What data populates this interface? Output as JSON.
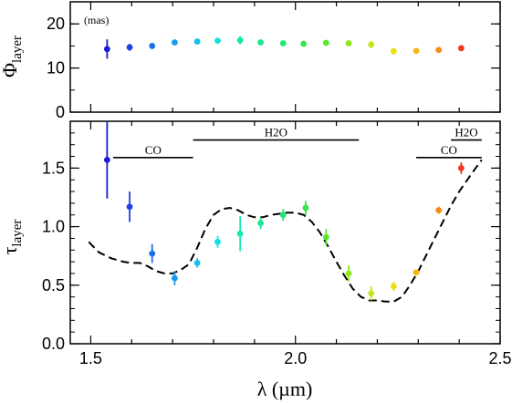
{
  "chart_data": [
    {
      "type": "scatter",
      "panel": "top",
      "ylabel_main": "Φ",
      "ylabel_sub": "layer",
      "annotation": "(mas)",
      "xlim": [
        1.45,
        2.5
      ],
      "ylim": [
        0,
        25
      ],
      "yticks": [
        0,
        10,
        20
      ],
      "grid": false,
      "points": [
        {
          "x": 1.54,
          "y": 14.3,
          "err": 2.2,
          "color": "#1a1ad6"
        },
        {
          "x": 1.595,
          "y": 14.7,
          "err": 0.8,
          "color": "#1f3fe0"
        },
        {
          "x": 1.65,
          "y": 15.0,
          "err": 0.7,
          "color": "#1c6fe6"
        },
        {
          "x": 1.705,
          "y": 15.8,
          "err": 0.5,
          "color": "#139ced"
        },
        {
          "x": 1.76,
          "y": 16.0,
          "err": 0.5,
          "color": "#10c0ef"
        },
        {
          "x": 1.81,
          "y": 16.2,
          "err": 0.5,
          "color": "#14e0e0"
        },
        {
          "x": 1.865,
          "y": 16.3,
          "err": 0.9,
          "color": "#16e8b0"
        },
        {
          "x": 1.915,
          "y": 15.8,
          "err": 0.5,
          "color": "#18e890"
        },
        {
          "x": 1.97,
          "y": 15.6,
          "err": 0.5,
          "color": "#1ee872"
        },
        {
          "x": 2.02,
          "y": 15.5,
          "err": 0.5,
          "color": "#30e848"
        },
        {
          "x": 2.075,
          "y": 15.7,
          "err": 0.6,
          "color": "#58e828"
        },
        {
          "x": 2.13,
          "y": 15.6,
          "err": 0.5,
          "color": "#8ae81e"
        },
        {
          "x": 2.185,
          "y": 15.3,
          "err": 0.8,
          "color": "#c0e818"
        },
        {
          "x": 2.24,
          "y": 13.8,
          "err": 0.6,
          "color": "#eae014"
        },
        {
          "x": 2.295,
          "y": 13.9,
          "err": 0.6,
          "color": "#f6b812"
        },
        {
          "x": 2.35,
          "y": 14.1,
          "err": 0.5,
          "color": "#f68a14"
        },
        {
          "x": 2.405,
          "y": 14.5,
          "err": 0.5,
          "color": "#ee3a18"
        }
      ]
    },
    {
      "type": "scatter",
      "panel": "bottom",
      "xlabel": "λ (µm)",
      "ylabel_main": "τ",
      "ylabel_sub": "layer",
      "xlim": [
        1.45,
        2.5
      ],
      "ylim": [
        0,
        1.9
      ],
      "xticks": [
        1.5,
        2.0,
        2.5
      ],
      "xtick_labels": [
        "1.5",
        "2.0",
        "2.5"
      ],
      "yticks": [
        0,
        0.5,
        1.0,
        1.5
      ],
      "ytick_labels": [
        "0.0",
        "0.5",
        "1.0",
        "1.5"
      ],
      "grid": false,
      "points": [
        {
          "x": 1.54,
          "y": 1.57,
          "err": 0.33,
          "color": "#1a1ad6"
        },
        {
          "x": 1.595,
          "y": 1.17,
          "err": 0.13,
          "color": "#1f3fe0"
        },
        {
          "x": 1.65,
          "y": 0.77,
          "err": 0.08,
          "color": "#1c6fe6"
        },
        {
          "x": 1.705,
          "y": 0.56,
          "err": 0.06,
          "color": "#139ced"
        },
        {
          "x": 1.76,
          "y": 0.69,
          "err": 0.04,
          "color": "#10c0ef"
        },
        {
          "x": 1.81,
          "y": 0.87,
          "err": 0.05,
          "color": "#14e0e0"
        },
        {
          "x": 1.865,
          "y": 0.94,
          "err": 0.15,
          "color": "#16e8b0"
        },
        {
          "x": 1.915,
          "y": 1.03,
          "err": 0.05,
          "color": "#18e890"
        },
        {
          "x": 1.97,
          "y": 1.1,
          "err": 0.05,
          "color": "#1ee872"
        },
        {
          "x": 2.025,
          "y": 1.16,
          "err": 0.06,
          "color": "#30e848"
        },
        {
          "x": 2.075,
          "y": 0.91,
          "err": 0.07,
          "color": "#58e828"
        },
        {
          "x": 2.13,
          "y": 0.6,
          "err": 0.07,
          "color": "#8ae81e"
        },
        {
          "x": 2.185,
          "y": 0.43,
          "err": 0.06,
          "color": "#c0e818"
        },
        {
          "x": 2.24,
          "y": 0.49,
          "err": 0.04,
          "color": "#eae014"
        },
        {
          "x": 2.295,
          "y": 0.61,
          "err": 0.02,
          "color": "#f6b812"
        },
        {
          "x": 2.35,
          "y": 1.14,
          "err": 0.03,
          "color": "#f68a14"
        },
        {
          "x": 2.405,
          "y": 1.5,
          "err": 0.05,
          "color": "#ee3a18"
        }
      ],
      "model_curve": {
        "style": "dashed",
        "x": [
          1.495,
          1.52,
          1.55,
          1.58,
          1.6,
          1.62,
          1.64,
          1.66,
          1.68,
          1.7,
          1.72,
          1.74,
          1.76,
          1.78,
          1.8,
          1.82,
          1.84,
          1.86,
          1.88,
          1.9,
          1.92,
          1.94,
          1.96,
          1.98,
          2.0,
          2.02,
          2.04,
          2.06,
          2.08,
          2.1,
          2.12,
          2.14,
          2.16,
          2.18,
          2.2,
          2.22,
          2.24,
          2.26,
          2.28,
          2.3,
          2.32,
          2.34,
          2.36,
          2.38,
          2.4,
          2.42,
          2.44,
          2.455
        ],
        "y": [
          0.87,
          0.78,
          0.73,
          0.7,
          0.69,
          0.69,
          0.66,
          0.62,
          0.6,
          0.6,
          0.63,
          0.68,
          0.82,
          0.98,
          1.1,
          1.15,
          1.16,
          1.14,
          1.1,
          1.08,
          1.08,
          1.1,
          1.11,
          1.12,
          1.12,
          1.1,
          1.04,
          0.95,
          0.83,
          0.7,
          0.58,
          0.47,
          0.4,
          0.37,
          0.37,
          0.36,
          0.36,
          0.4,
          0.5,
          0.62,
          0.76,
          0.9,
          1.04,
          1.18,
          1.3,
          1.4,
          1.5,
          1.57
        ]
      },
      "bands": [
        {
          "label": "CO",
          "x_start": 1.555,
          "x_end": 1.75,
          "y": 1.59
        },
        {
          "label": "H2O",
          "x_start": 1.75,
          "x_end": 2.155,
          "y": 1.74
        },
        {
          "label": "CO",
          "x_start": 2.295,
          "x_end": 2.455,
          "y": 1.59
        },
        {
          "label": "H2O",
          "x_start": 2.38,
          "x_end": 2.455,
          "y": 1.74
        }
      ]
    }
  ]
}
